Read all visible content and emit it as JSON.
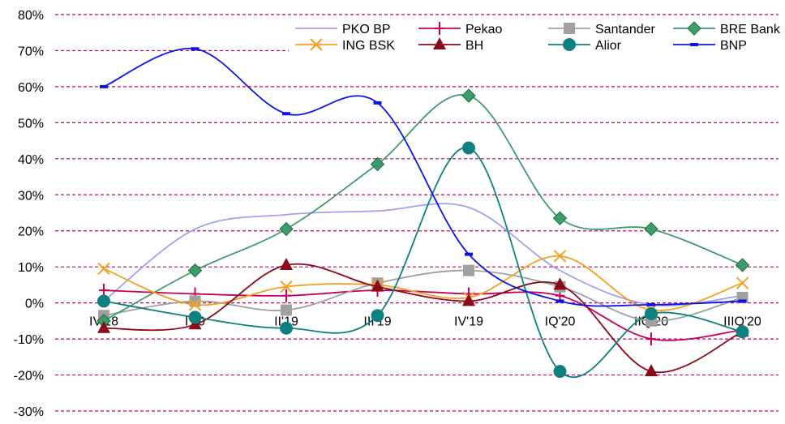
{
  "chart_data": {
    "type": "line",
    "title": "",
    "xlabel": "",
    "ylabel": "",
    "categories": [
      "IV'18",
      "I'19",
      "II'19",
      "III'19",
      "IV'19",
      "IQ'20",
      "IIQ'20",
      "IIIQ'20"
    ],
    "y_unit": "%",
    "ylim": [
      -30,
      80
    ],
    "yticks": [
      -30,
      -20,
      -10,
      0,
      10,
      20,
      30,
      40,
      50,
      60,
      70,
      80
    ],
    "ytick_labels": [
      "-30%",
      "-20%",
      "-10%",
      "0%",
      "10%",
      "20%",
      "30%",
      "40%",
      "50%",
      "60%",
      "70%",
      "80%"
    ],
    "grid": true,
    "grid_style": "dashed",
    "grid_color": "#c0006a",
    "legend_position": "top-right",
    "series": [
      {
        "name": "PKO BP",
        "color": "#a0a0ee",
        "marker": "none",
        "values": [
          0.5,
          20.5,
          24.5,
          25.5,
          26.5,
          9,
          -0.5,
          2
        ]
      },
      {
        "name": "Pekao",
        "color": "#c8005a",
        "marker": "plus",
        "values": [
          3.5,
          2.5,
          2,
          3.5,
          2.5,
          2,
          -10,
          -7.5
        ]
      },
      {
        "name": "Santander",
        "color": "#a0a0a0",
        "marker": "square",
        "values": [
          -3.5,
          0.5,
          -2,
          5.5,
          9,
          4.5,
          -5,
          1.5
        ]
      },
      {
        "name": "BRE Bank",
        "color": "#3c9c6a",
        "marker": "diamond",
        "values": [
          -5,
          9,
          20.5,
          38.5,
          57.5,
          23.5,
          20.5,
          10.5
        ]
      },
      {
        "name": "ING BSK",
        "color": "#f4a020",
        "marker": "x",
        "values": [
          9.5,
          -0.5,
          4.5,
          5,
          1.5,
          13,
          -2,
          5.5
        ]
      },
      {
        "name": "BH",
        "color": "#8b0a1a",
        "marker": "triangle",
        "values": [
          -7,
          -6,
          10.5,
          4.5,
          0.5,
          5,
          -19,
          -8
        ]
      },
      {
        "name": "Alior",
        "color": "#0e8080",
        "marker": "circle",
        "values": [
          0.5,
          -4,
          -7,
          -3.5,
          43,
          -19,
          -3,
          -8
        ]
      },
      {
        "name": "BNP",
        "color": "#0a14e6",
        "marker": "dash",
        "values": [
          60,
          70.5,
          52.5,
          55.5,
          13.5,
          0.5,
          -0.5,
          0.5
        ]
      }
    ]
  }
}
